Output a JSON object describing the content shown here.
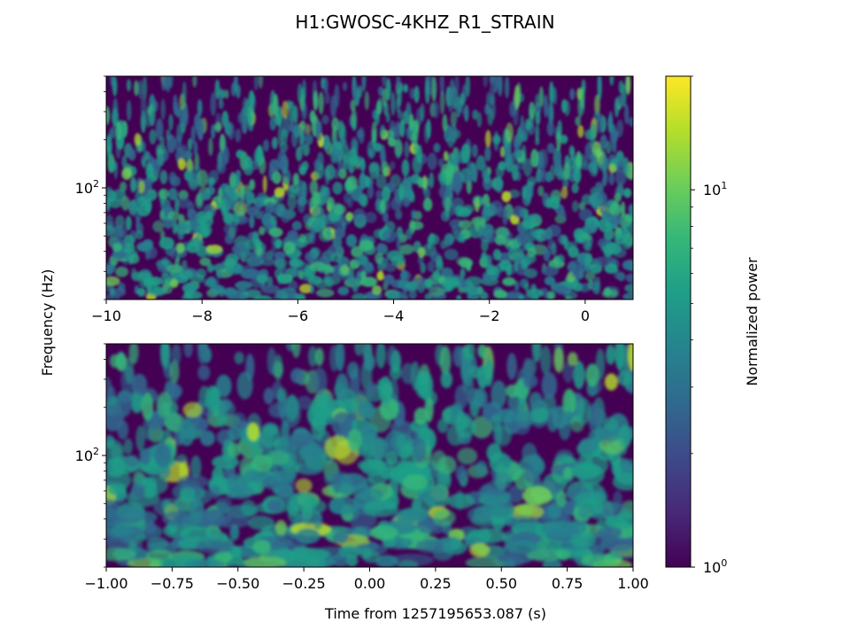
{
  "figure": {
    "title": "H1:GWOSC-4KHZ_R1_STRAIN",
    "ylabel": "Frequency (Hz)",
    "xlabel": "Time from 1257195653.087 (s)"
  },
  "colorbar": {
    "label": "Normalized power",
    "scale": "log",
    "range": [
      1,
      20
    ],
    "colormap": "viridis",
    "ticks": [
      {
        "value": 1,
        "base": "10",
        "exp": "0"
      },
      {
        "value": 10,
        "base": "10",
        "exp": "1"
      }
    ]
  },
  "colors": {
    "viridis": [
      "#440154",
      "#482878",
      "#3e4989",
      "#31688e",
      "#26828e",
      "#1f9e89",
      "#35b779",
      "#6ece58",
      "#b5de2b",
      "#fde725"
    ],
    "background": "#440154"
  },
  "chart_data": [
    {
      "type": "heatmap",
      "panel": "top",
      "x_range": [
        -10,
        1
      ],
      "xticks": [
        "−10",
        "−8",
        "−6",
        "−4",
        "−2",
        "0"
      ],
      "xtick_values": [
        -10,
        -8,
        -6,
        -4,
        -2,
        0
      ],
      "y_scale": "log",
      "y_range": [
        20,
        500
      ],
      "ytick_major": [
        {
          "value": 100,
          "base": "10",
          "exp": "2"
        }
      ],
      "z_scale": "log",
      "z_range": [
        1,
        20
      ]
    },
    {
      "type": "heatmap",
      "panel": "bottom",
      "x_range": [
        -1,
        1
      ],
      "xticks": [
        "−1.00",
        "−0.75",
        "−0.50",
        "−0.25",
        "0.00",
        "0.25",
        "0.50",
        "0.75",
        "1.00"
      ],
      "xtick_values": [
        -1,
        -0.75,
        -0.5,
        -0.25,
        0,
        0.25,
        0.5,
        0.75,
        1
      ],
      "y_scale": "log",
      "y_range": [
        20,
        500
      ],
      "ytick_major": [
        {
          "value": 100,
          "base": "10",
          "exp": "2"
        }
      ],
      "z_scale": "log",
      "z_range": [
        1,
        20
      ]
    }
  ]
}
